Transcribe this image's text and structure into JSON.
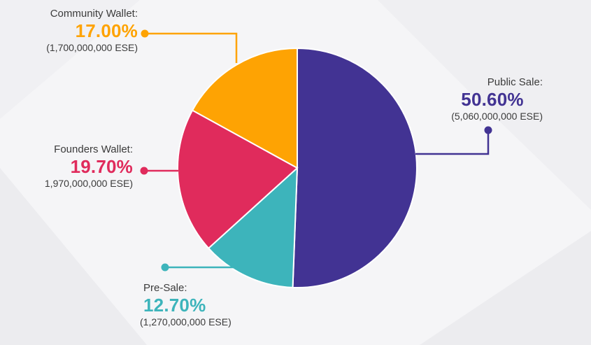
{
  "chart_data": {
    "type": "pie",
    "title": "",
    "slices": [
      {
        "label": "Public Sale:",
        "percent_text": "50.60%",
        "amount_text": "(5,060,000,000 ESE)",
        "value": 50.6,
        "color": "#423393"
      },
      {
        "label": "Pre-Sale:",
        "percent_text": "12.70%",
        "amount_text": "(1,270,000,000 ESE)",
        "value": 12.7,
        "color": "#3db4bb"
      },
      {
        "label": "Founders Wallet:",
        "percent_text": "19.70%",
        "amount_text": "1,970,000,000 ESE)",
        "value": 19.7,
        "color": "#e02b5c"
      },
      {
        "label": "Community Wallet:",
        "percent_text": "17.00%",
        "amount_text": "(1,700,000,000 ESE)",
        "value": 17.0,
        "color": "#fea303"
      }
    ],
    "legend": "none"
  }
}
